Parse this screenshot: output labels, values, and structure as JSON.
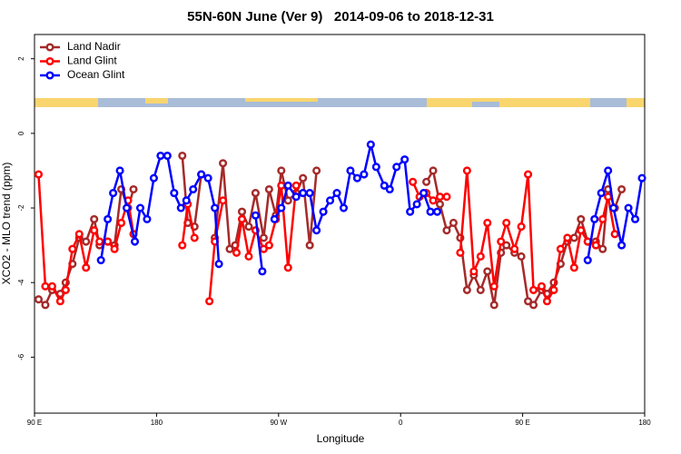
{
  "chart_data": {
    "type": "line",
    "title": "55N-60N June (Ver 9)   2014-09-06 to 2018-12-31",
    "xlabel": "Longitude",
    "ylabel": "XCO2 - MLO trend (ppm)",
    "xlim": [
      90,
      540
    ],
    "ylim": [
      -7.5,
      2.65
    ],
    "xticks": [
      {
        "value": 90,
        "label": "90 E"
      },
      180,
      {
        "value": 270,
        "label": "90 W"
      },
      {
        "value": 360,
        "label": "0"
      },
      {
        "value": 450,
        "label": "90 E"
      },
      {
        "value": 540,
        "label": "180"
      }
    ],
    "yticks": [
      2,
      0,
      -2,
      -4,
      -6
    ],
    "legend": "top-left",
    "series": [
      {
        "name": "Land Nadir",
        "color": "#a52a2a",
        "x": [
          93,
          98,
          103,
          109,
          113,
          118,
          123,
          128,
          134,
          138,
          144,
          149,
          154,
          159,
          163,
          null,
          199,
          203,
          208,
          213,
          null,
          223,
          229,
          234,
          238,
          243,
          248,
          253,
          259,
          263,
          268,
          272,
          277,
          283,
          288,
          293,
          298,
          null,
          379,
          384,
          389,
          394,
          399,
          404,
          409,
          414,
          419,
          424,
          429,
          434,
          438,
          444,
          449,
          454,
          458,
          464,
          468,
          473,
          478,
          483,
          488,
          493,
          498,
          504,
          509,
          513,
          518,
          523
        ],
        "values": [
          -4.45,
          -4.6,
          -4.2,
          -4.3,
          -4.0,
          -3.5,
          -2.8,
          -2.9,
          -2.3,
          -3.0,
          -2.9,
          -3.0,
          -1.5,
          -2.0,
          -1.5,
          null,
          -0.6,
          -2.4,
          -2.5,
          -1.1,
          null,
          -2.8,
          -0.8,
          -3.1,
          -3.0,
          -2.1,
          -2.5,
          -1.6,
          -2.8,
          -1.5,
          -2.2,
          -1.0,
          -1.8,
          -1.6,
          -1.2,
          -3.0,
          -1.0,
          null,
          -1.3,
          -1.0,
          -1.9,
          -2.6,
          -2.4,
          -2.8,
          -4.2,
          -3.8,
          -4.2,
          -3.7,
          -4.6,
          -3.2,
          -3.0,
          -3.2,
          -3.3,
          -4.5,
          -4.6,
          -4.2,
          -4.3,
          -4.0,
          -3.5,
          -2.9,
          -2.8,
          -2.3,
          -2.9,
          -2.9,
          -3.1,
          -1.5,
          -2.0,
          -1.5
        ]
      },
      {
        "name": "Land Glint",
        "color": "#ff0000",
        "x": [
          93,
          98,
          103,
          109,
          113,
          118,
          123,
          128,
          134,
          138,
          144,
          149,
          154,
          159,
          163,
          null,
          199,
          203,
          208,
          null,
          219,
          223,
          229,
          null,
          239,
          243,
          248,
          253,
          259,
          263,
          268,
          272,
          277,
          283,
          null,
          369,
          374,
          379,
          384,
          389,
          394,
          null,
          404,
          409,
          414,
          419,
          424,
          429,
          434,
          438,
          444,
          449,
          454,
          458,
          464,
          468,
          473,
          478,
          483,
          488,
          493,
          498,
          504,
          509,
          513,
          518
        ],
        "values": [
          -1.1,
          -4.1,
          -4.1,
          -4.5,
          -4.2,
          -3.1,
          -2.7,
          -3.6,
          -2.6,
          -2.9,
          -2.9,
          -3.1,
          -2.4,
          -1.8,
          -2.7,
          null,
          -3.0,
          -1.9,
          -2.8,
          null,
          -4.5,
          -2.9,
          -1.8,
          null,
          -3.2,
          -2.3,
          -3.3,
          -2.6,
          -3.1,
          -3.0,
          -2.3,
          -1.4,
          -3.6,
          -1.4,
          null,
          -1.3,
          -1.7,
          -1.6,
          -1.8,
          -1.7,
          -1.7,
          null,
          -3.2,
          -1.0,
          -3.7,
          -3.3,
          -2.4,
          -4.1,
          -2.9,
          -2.4,
          -3.1,
          -2.5,
          -1.1,
          -4.2,
          -4.1,
          -4.5,
          -4.2,
          -3.1,
          -2.8,
          -3.6,
          -2.6,
          -2.9,
          -3.0,
          -2.3,
          -1.7,
          -2.7
        ]
      },
      {
        "name": "Ocean Glint",
        "color": "#0000ff",
        "x": [
          139,
          144,
          148,
          153,
          158,
          164,
          168,
          173,
          178,
          183,
          188,
          193,
          198,
          202,
          207,
          213,
          218,
          223,
          226,
          null,
          253,
          258,
          null,
          267,
          272,
          277,
          283,
          288,
          293,
          298,
          303,
          308,
          313,
          318,
          323,
          328,
          333,
          338,
          342,
          348,
          352,
          357,
          363,
          367,
          372,
          377,
          382,
          387,
          null,
          498,
          503,
          508,
          513,
          517,
          523,
          528,
          533,
          538
        ],
        "values": [
          -3.4,
          -2.3,
          -1.6,
          -1.0,
          -2.0,
          -2.9,
          -2.0,
          -2.3,
          -1.2,
          -0.6,
          -0.6,
          -1.6,
          -2.0,
          -1.8,
          -1.5,
          -1.1,
          -1.2,
          -2.0,
          -3.5,
          null,
          -2.2,
          -3.7,
          null,
          -2.3,
          -2.0,
          -1.4,
          -1.7,
          -1.6,
          -1.6,
          -2.6,
          -2.1,
          -1.8,
          -1.6,
          -2.0,
          -1.0,
          -1.2,
          -1.1,
          -0.3,
          -0.9,
          -1.4,
          -1.5,
          -0.9,
          -0.7,
          -2.1,
          -1.9,
          -1.6,
          -2.1,
          -2.1,
          null,
          -3.4,
          -2.3,
          -1.6,
          -1.0,
          -2.0,
          -3.0,
          -2.0,
          -2.3,
          -1.2
        ]
      }
    ]
  }
}
